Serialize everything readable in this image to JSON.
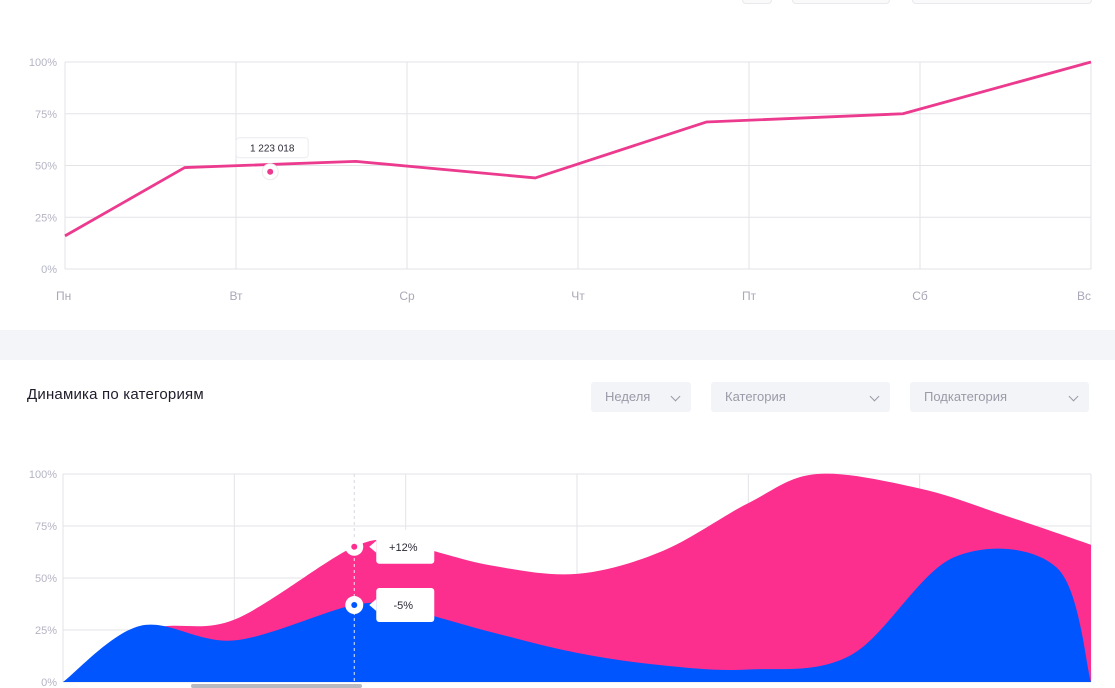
{
  "chart_data": [
    {
      "type": "line",
      "categories": [
        "Пн",
        "Вт",
        "Ср",
        "Чт",
        "Пт",
        "Сб",
        "Вс"
      ],
      "y_ticks": [
        "0%",
        "25%",
        "50%",
        "75%",
        "100%"
      ],
      "ylim": [
        0,
        100
      ],
      "x_range": [
        0,
        6
      ],
      "grid": true,
      "series": [
        {
          "x": [
            0,
            0.7,
            1.7,
            2.75,
            3.75,
            4.9,
            6
          ],
          "values": [
            16,
            49,
            52,
            44,
            71,
            75,
            100
          ],
          "color": "#ec3a8e"
        }
      ],
      "marker": {
        "x": 1.2,
        "y": 47
      },
      "tooltip": "1 223 018"
    },
    {
      "type": "area",
      "title": "Динамика по категориям",
      "y_ticks": [
        "0%",
        "25%",
        "50%",
        "75%",
        "100%"
      ],
      "ylim": [
        0,
        100
      ],
      "x_range": [
        0,
        6
      ],
      "grid": true,
      "series": [
        {
          "x": [
            0,
            0.5,
            1,
            1.7,
            2,
            2.5,
            3,
            3.5,
            4,
            4.4,
            5,
            5.5,
            6
          ],
          "values": [
            0,
            25,
            30,
            65,
            66,
            56,
            52,
            63,
            86,
            100,
            93,
            80,
            66
          ],
          "color": "#fc2e8e"
        },
        {
          "x": [
            0,
            0.45,
            1,
            1.7,
            2,
            2.5,
            3,
            3.5,
            4,
            4.6,
            5.2,
            5.8,
            6
          ],
          "values": [
            0,
            27,
            20,
            37,
            35,
            24,
            14,
            8,
            6,
            13,
            60,
            55,
            0
          ],
          "color": "#0055fe"
        }
      ],
      "marker_x": 1.7,
      "tooltips": [
        {
          "label": "+12%",
          "y": 65
        },
        {
          "label": "-5%",
          "y": 37
        }
      ]
    }
  ],
  "section2": {
    "title": "Динамика по категориям",
    "filters": [
      {
        "label": "Неделя"
      },
      {
        "label": "Категория"
      },
      {
        "label": "Подкатегория"
      }
    ]
  }
}
